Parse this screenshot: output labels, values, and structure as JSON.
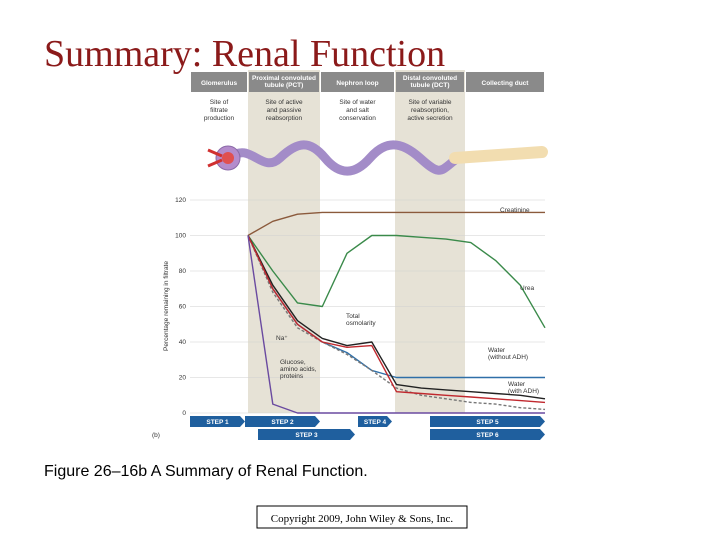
{
  "title": "Summary: Renal Function",
  "caption": "Figure 26–16b A Summary of Renal Function.",
  "copyright": "Copyright 2009, John Wiley & Sons, Inc.",
  "chart_data": {
    "type": "line",
    "panel_label": "(b)",
    "ylabel": "Percentage remaining in filtrate",
    "ylim": [
      0,
      120
    ],
    "yticks": [
      0,
      20,
      40,
      60,
      80,
      100,
      120
    ],
    "grid": true,
    "regions": [
      {
        "label": "Glomerulus",
        "description": "Site of\nfiltrate\nproduction",
        "shaded": false
      },
      {
        "label": "Proximal convoluted\ntubule (PCT)",
        "description": "Site of active\nand passive\nreabsorption",
        "shaded": true
      },
      {
        "label": "Nephron loop",
        "description": "Site of water\nand salt\nconservation",
        "shaded": false
      },
      {
        "label": "Distal convoluted\ntubule (DCT)",
        "description": "Site of variable\nreabsorption,\nactive secretion",
        "shaded": true
      },
      {
        "label": "Collecting duct",
        "description": null,
        "shaded": false
      }
    ],
    "steps": [
      "STEP 1",
      "STEP 2",
      "STEP 3",
      "STEP 4",
      "STEP 5",
      "STEP 6"
    ],
    "categories": [
      null,
      null,
      null,
      null,
      null,
      null,
      null,
      null,
      null,
      null,
      null,
      null,
      null
    ],
    "series": [
      {
        "name": "Creatinine",
        "color": "#8b5a3c",
        "dashed": false,
        "values": [
          100,
          108,
          112,
          113,
          113,
          113,
          113,
          113,
          113,
          113,
          113,
          113,
          113
        ]
      },
      {
        "name": "Urea",
        "color": "#3a8a4a",
        "dashed": false,
        "values": [
          100,
          80,
          62,
          60,
          90,
          100,
          100,
          99,
          98,
          96,
          86,
          72,
          48
        ]
      },
      {
        "name": "Water\n(without ADH)",
        "color": "#2f6fa8",
        "dashed": false,
        "values": [
          100,
          70,
          50,
          40,
          34,
          24,
          20,
          20,
          20,
          20,
          20,
          20,
          20
        ]
      },
      {
        "name": "Water\n(with ADH)",
        "color": "#777777",
        "dashed": true,
        "values": [
          100,
          68,
          48,
          40,
          33,
          24,
          14,
          10,
          8,
          6,
          5,
          3,
          2
        ]
      },
      {
        "name": "Total\nosmolarity",
        "color": "#222222",
        "dashed": false,
        "values": [
          100,
          72,
          52,
          42,
          38,
          40,
          16,
          14,
          13,
          12,
          11,
          10,
          8
        ]
      },
      {
        "name": "Na⁺",
        "color": "#c0282e",
        "dashed": false,
        "values": [
          100,
          70,
          50,
          40,
          37,
          38,
          12,
          11,
          10,
          9,
          8,
          7,
          6
        ]
      },
      {
        "name": "Glucose,\namino acids,\nproteins",
        "color": "#6a4aa0",
        "dashed": false,
        "values": [
          100,
          5,
          0,
          0,
          0,
          0,
          0,
          0,
          0,
          0,
          0,
          0,
          0
        ]
      }
    ]
  }
}
